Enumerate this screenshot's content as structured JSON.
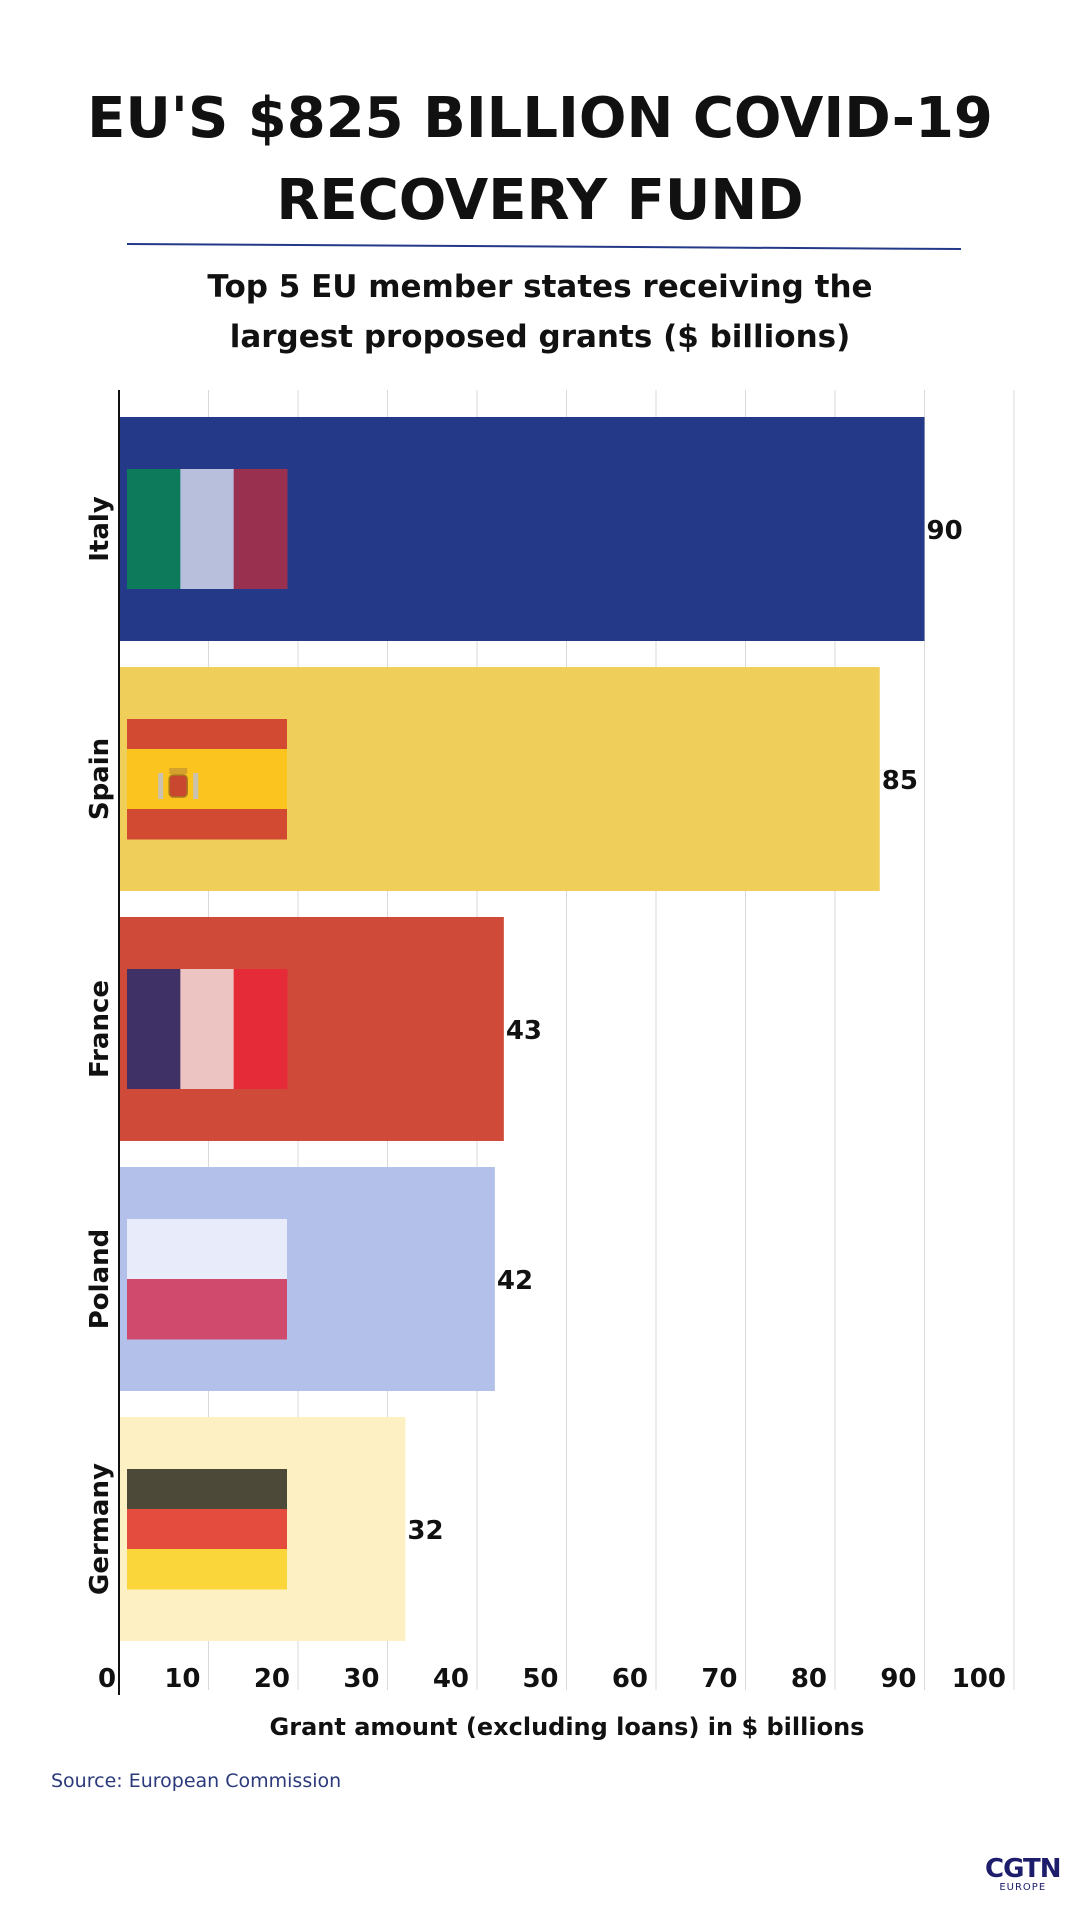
{
  "header": {
    "title_line1": "EU'S $825 BILLION COVID-19",
    "title_line2": "RECOVERY FUND",
    "subtitle_line1": "Top 5 EU member states receiving the",
    "subtitle_line2": "largest proposed grants ($ billions)"
  },
  "chart_data": {
    "type": "bar",
    "orientation": "horizontal",
    "categories": [
      "Italy",
      "Spain",
      "France",
      "Poland",
      "Germany"
    ],
    "values": [
      90,
      85,
      43,
      42,
      32
    ],
    "value_labels": [
      "90",
      "85",
      "43",
      "42",
      "32"
    ],
    "bar_colors": [
      "#243a88",
      "#efce5a",
      "#cf4a38",
      "#b3c0ea",
      "#fdf0c2"
    ],
    "flags": [
      "italy-flag",
      "spain-flag",
      "france-flag",
      "poland-flag",
      "germany-flag"
    ],
    "xlabel": "Grant amount (excluding loans) in $ billions",
    "xlim": [
      0,
      100
    ],
    "xticks": [
      0,
      10,
      20,
      30,
      40,
      50,
      60,
      70,
      80,
      90,
      100
    ],
    "grid": true
  },
  "footer": {
    "source": "Source: European Commission",
    "logo_main": "CGTN",
    "logo_sub": "EUROPE"
  }
}
